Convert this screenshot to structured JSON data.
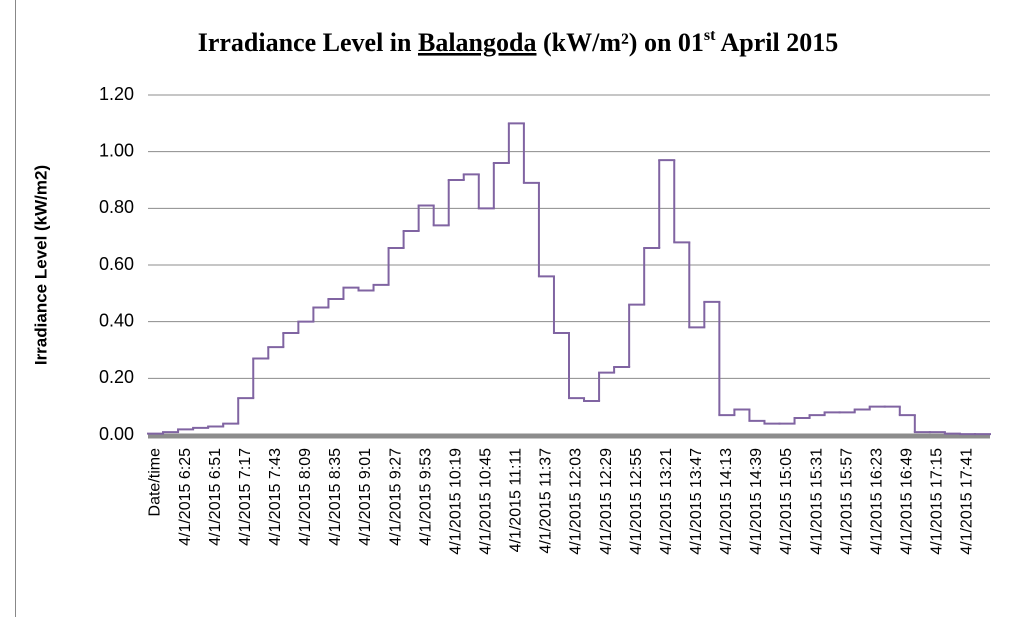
{
  "chart_data": {
    "type": "step",
    "title": [
      "Irradiance Level in ",
      "Balangoda",
      " (kW/m²) on 01",
      "st",
      " April 2015"
    ],
    "y_label": "Irradiance Level (kW/m2)",
    "categories": [
      "Date/time",
      null,
      "4/1/2015 6:25",
      null,
      "4/1/2015 6:51",
      null,
      "4/1/2015 7:17",
      null,
      "4/1/2015 7:43",
      null,
      "4/1/2015 8:09",
      null,
      "4/1/2015 8:35",
      null,
      "4/1/2015 9:01",
      null,
      "4/1/2015 9:27",
      null,
      "4/1/2015 9:53",
      null,
      "4/1/2015 10:19",
      null,
      "4/1/2015 10:45",
      null,
      "4/1/2015 11:11",
      null,
      "4/1/2015 11:37",
      null,
      "4/1/2015 12:03",
      null,
      "4/1/2015 12:29",
      null,
      "4/1/2015 12:55",
      null,
      "4/1/2015 13:21",
      null,
      "4/1/2015 13:47",
      null,
      "4/1/2015 14:13",
      null,
      "4/1/2015 14:39",
      null,
      "4/1/2015 15:05",
      null,
      "4/1/2015 15:31",
      null,
      "4/1/2015 15:57",
      null,
      "4/1/2015 16:23",
      null,
      "4/1/2015 16:49",
      null,
      "4/1/2015 17:15",
      null,
      "4/1/2015 17:41",
      null
    ],
    "values": [
      0.005,
      0.01,
      0.02,
      0.025,
      0.03,
      0.04,
      0.13,
      0.27,
      0.31,
      0.36,
      0.4,
      0.45,
      0.48,
      0.52,
      0.51,
      0.53,
      0.66,
      0.72,
      0.81,
      0.74,
      0.9,
      0.92,
      0.8,
      0.96,
      1.1,
      0.89,
      0.56,
      0.36,
      0.13,
      0.12,
      0.22,
      0.24,
      0.46,
      0.66,
      0.97,
      0.68,
      0.38,
      0.47,
      0.07,
      0.09,
      0.05,
      0.04,
      0.04,
      0.06,
      0.07,
      0.08,
      0.08,
      0.09,
      0.1,
      0.1,
      0.07,
      0.01,
      0.01,
      0.005,
      0.003,
      0.003
    ],
    "color": "#8064a2",
    "ylim": [
      0,
      1.2
    ],
    "yticks": [
      {
        "value": 0,
        "label": "0.00"
      },
      {
        "value": 0.2,
        "label": "0.20"
      },
      {
        "value": 0.4,
        "label": "0.40"
      },
      {
        "value": 0.6,
        "label": "0.60"
      },
      {
        "value": 0.8,
        "label": "0.80"
      },
      {
        "value": 1,
        "label": "1.00"
      },
      {
        "value": 1.2,
        "label": "1.20"
      }
    ],
    "grid": true
  }
}
